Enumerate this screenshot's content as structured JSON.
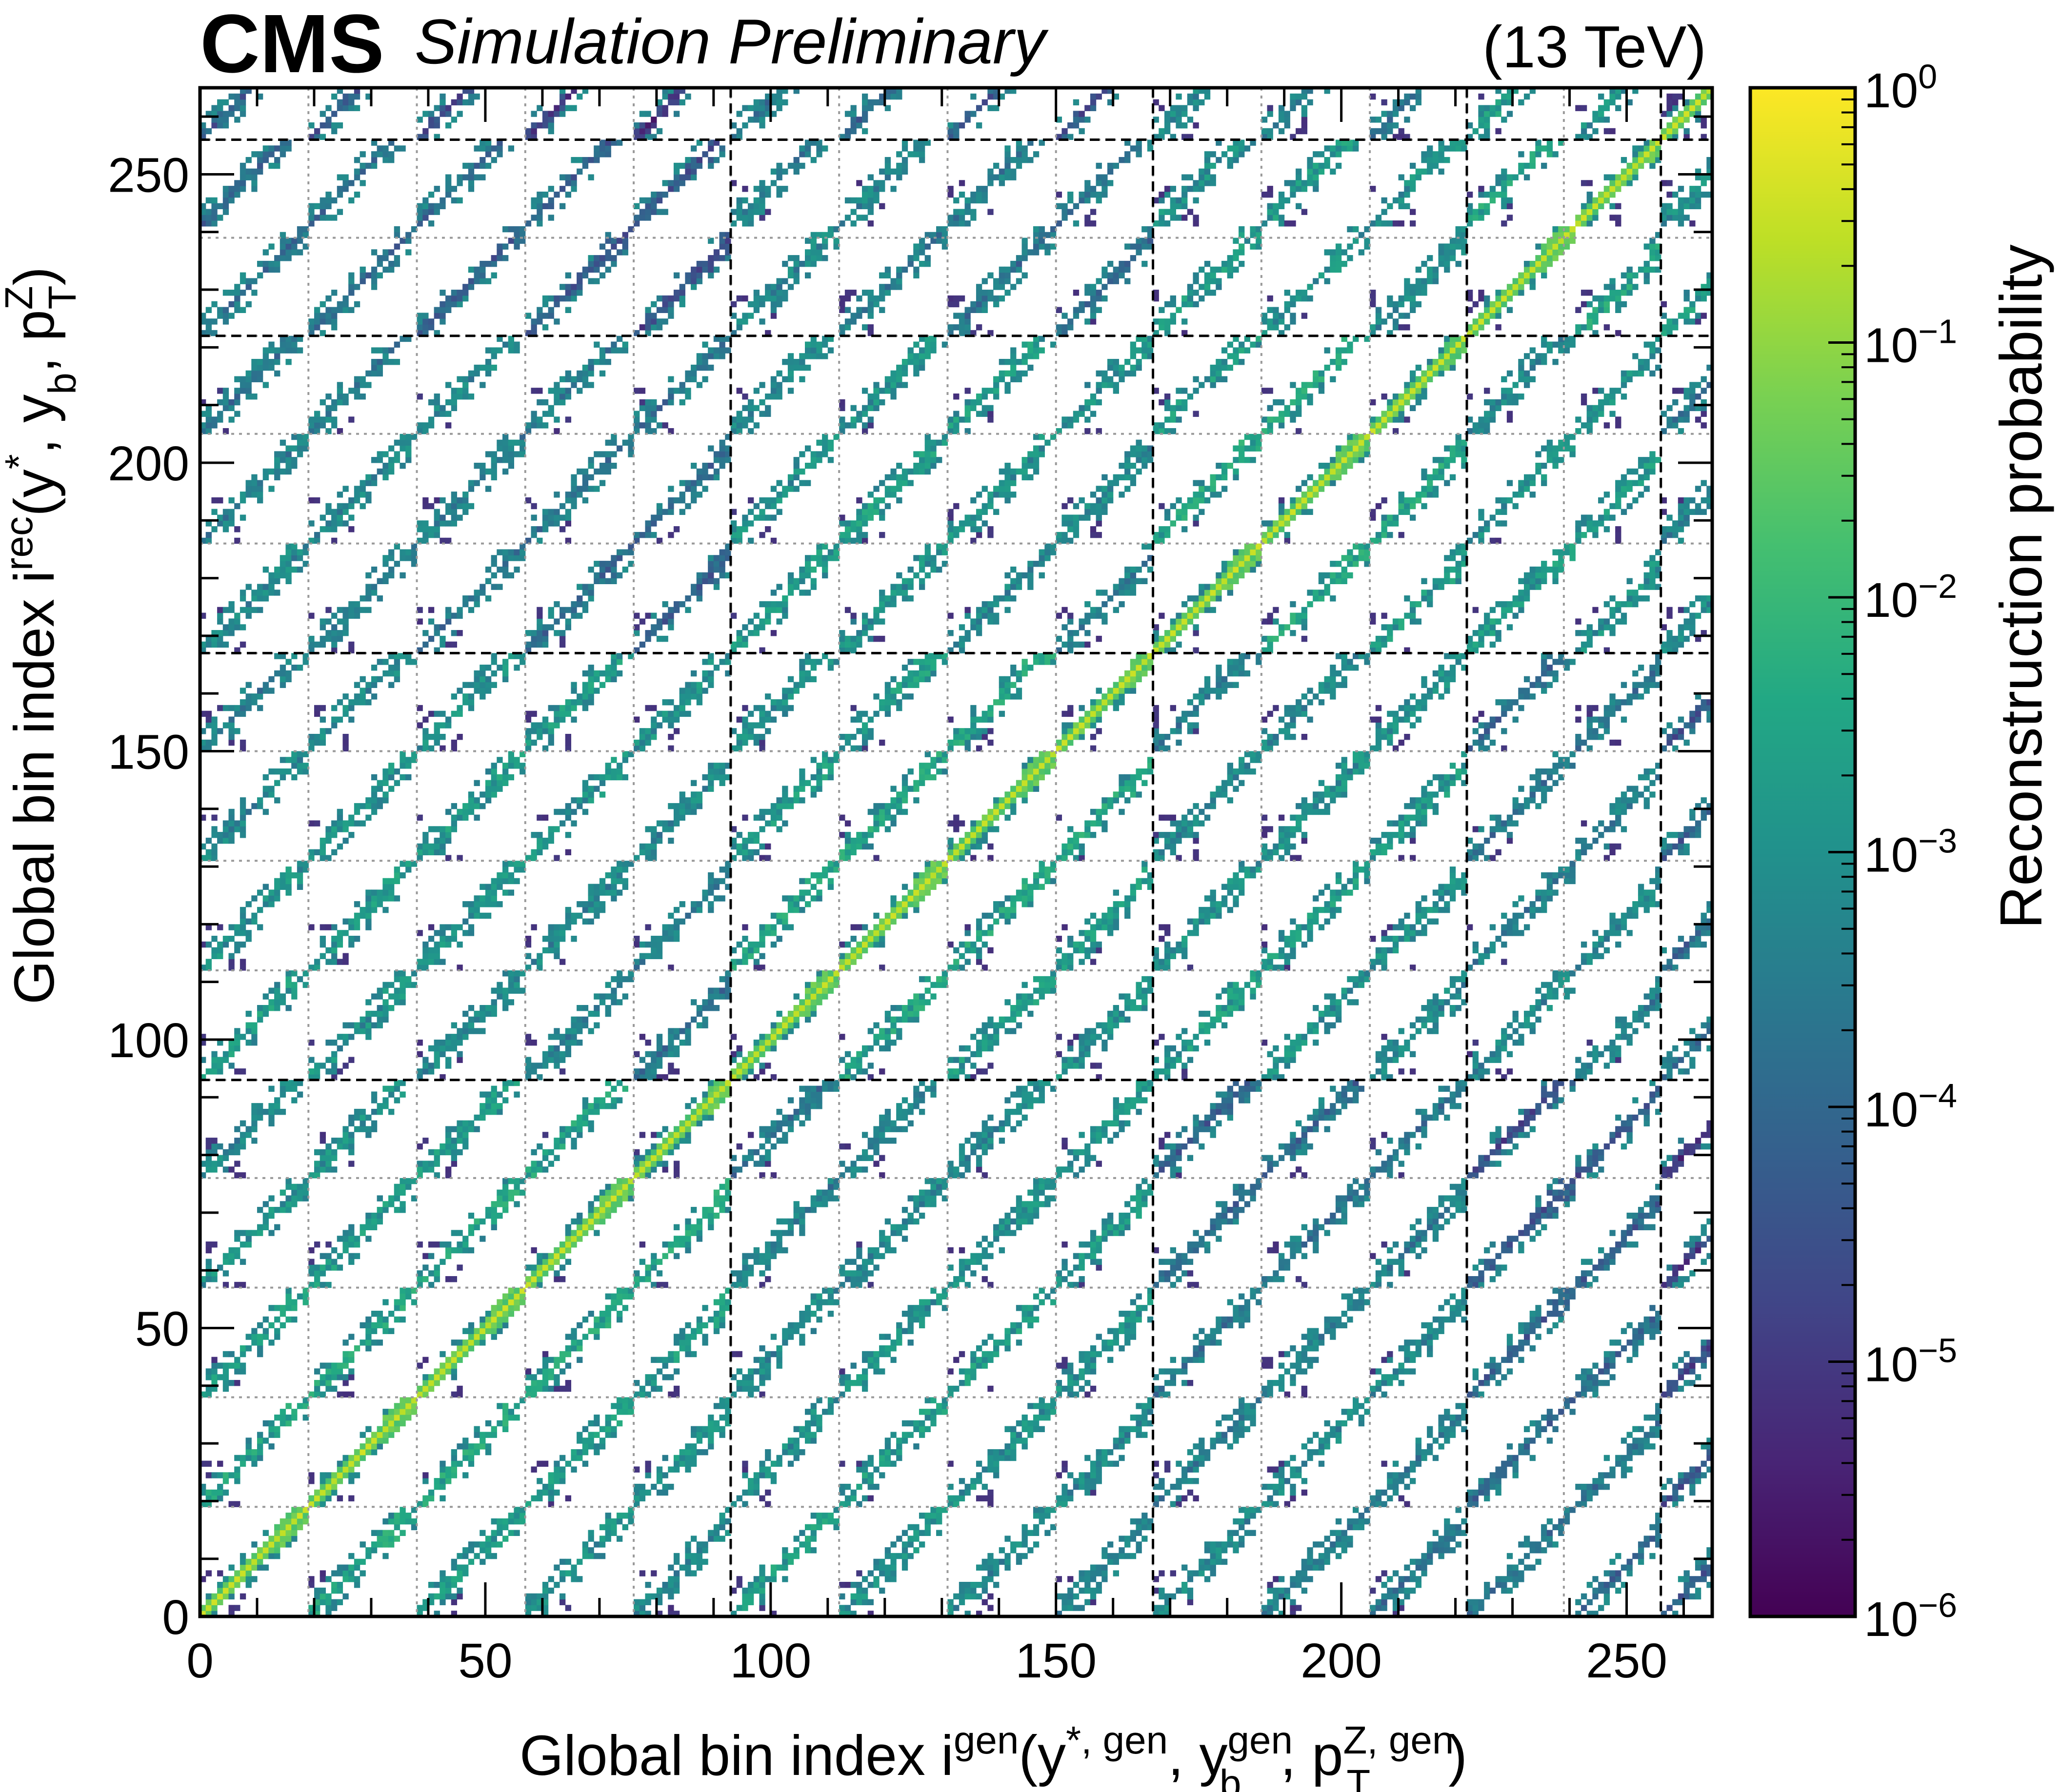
{
  "chart_data": {
    "type": "heatmap",
    "experiment": "CMS",
    "status": "Simulation Preliminary",
    "energy": "(13 TeV)",
    "x": {
      "label_main": "Global bin index i",
      "label_sup": "gen",
      "label_args": "(y*,gen, y_b^gen, p_T^Z,gen)",
      "range": [
        0,
        265
      ],
      "major_ticks": [
        0,
        50,
        100,
        150,
        200,
        250
      ],
      "tick_labels": [
        "0",
        "50",
        "100",
        "150",
        "200",
        "250"
      ]
    },
    "y": {
      "label_main": "Global bin index i",
      "label_sup": "rec",
      "label_args": "(y*, y_b, p_T^Z)",
      "range": [
        0,
        265
      ],
      "major_ticks": [
        0,
        50,
        100,
        150,
        200,
        250
      ],
      "tick_labels": [
        "0",
        "50",
        "100",
        "150",
        "200",
        "250"
      ]
    },
    "colorbar": {
      "label": "Reconstruction probability",
      "scale": "log",
      "range": [
        1e-06,
        1
      ],
      "colormap": "viridis",
      "tick_values": [
        1e-06,
        1e-05,
        0.0001,
        0.001,
        0.01,
        0.1,
        1
      ],
      "tick_labels": [
        {
          "base": "10",
          "exp": "−6"
        },
        {
          "base": "10",
          "exp": "−5"
        },
        {
          "base": "10",
          "exp": "−4"
        },
        {
          "base": "10",
          "exp": "−3"
        },
        {
          "base": "10",
          "exp": "−2"
        },
        {
          "base": "10",
          "exp": "−1"
        },
        {
          "base": "10",
          "exp": "0"
        }
      ]
    },
    "pt_bins_per_block": 19,
    "yb_blocks_per_ystar": [
      5,
      4,
      3,
      2,
      1
    ],
    "ystar_block_boundaries": [
      0,
      93,
      167,
      222,
      256,
      265
    ],
    "yb_block_boundaries": [
      0,
      19,
      38,
      57,
      76,
      93,
      112,
      131,
      150,
      167,
      186,
      205,
      222,
      239,
      256,
      265
    ],
    "structure": "block matrix; strong diagonal response (probability ~0.1-1), off-diagonal bands from y_b/y* migrations (~1e-3-1e-2), sparse low-probability noise (~1e-6-1e-5) at low p_T"
  }
}
